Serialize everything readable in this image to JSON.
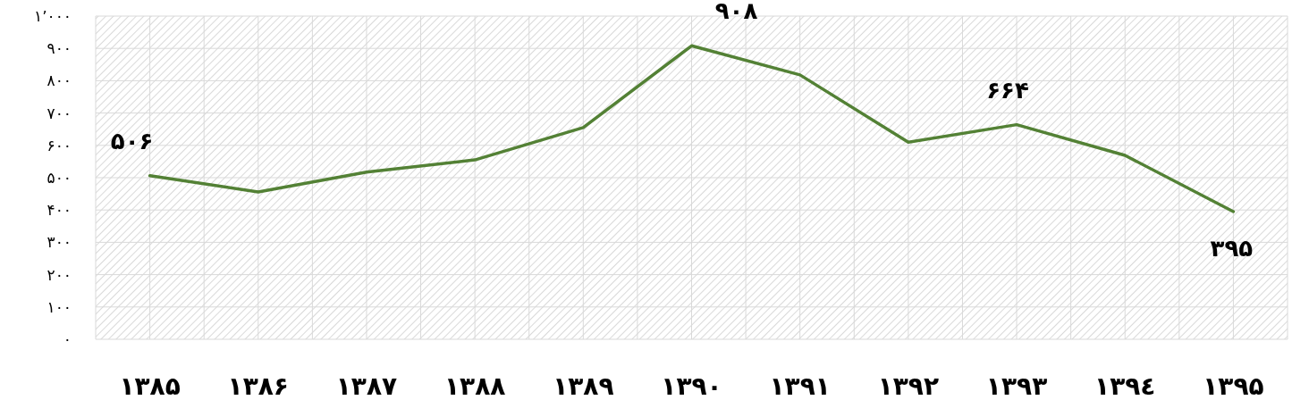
{
  "chart_data": {
    "type": "line",
    "categories": [
      "۱۳۸۵",
      "۱۳۸۶",
      "۱۳۸۷",
      "۱۳۸۸",
      "۱۳۸۹",
      "۱۳۹۰",
      "۱۳۹۱",
      "۱۳۹۲",
      "۱۳۹۳",
      "۱۳۹٤",
      "۱۳۹۵"
    ],
    "series": [
      {
        "color": "#538135",
        "values": [
          506,
          456,
          517,
          555,
          655,
          908,
          818,
          610,
          664,
          569,
          395
        ],
        "value_labels": [
          "۵۰۶",
          null,
          null,
          null,
          null,
          "۹۰۸",
          null,
          null,
          "۶۶۴",
          null,
          "۳۹۵"
        ]
      }
    ],
    "ylim": [
      0,
      1000
    ],
    "yticks": [
      {
        "value": 0,
        "label": "۰"
      },
      {
        "value": 100,
        "label": "۱۰۰"
      },
      {
        "value": 200,
        "label": "۲۰۰"
      },
      {
        "value": 300,
        "label": "۳۰۰"
      },
      {
        "value": 400,
        "label": "۴۰۰"
      },
      {
        "value": 500,
        "label": "۵۰۰"
      },
      {
        "value": 600,
        "label": "۶۰۰"
      },
      {
        "value": 700,
        "label": "۷۰۰"
      },
      {
        "value": 800,
        "label": "۸۰۰"
      },
      {
        "value": 900,
        "label": "۹۰۰"
      },
      {
        "value": 1000,
        "label": "۱٬۰۰۰"
      }
    ],
    "grid": true,
    "marker": "none",
    "line_style": "solid"
  }
}
